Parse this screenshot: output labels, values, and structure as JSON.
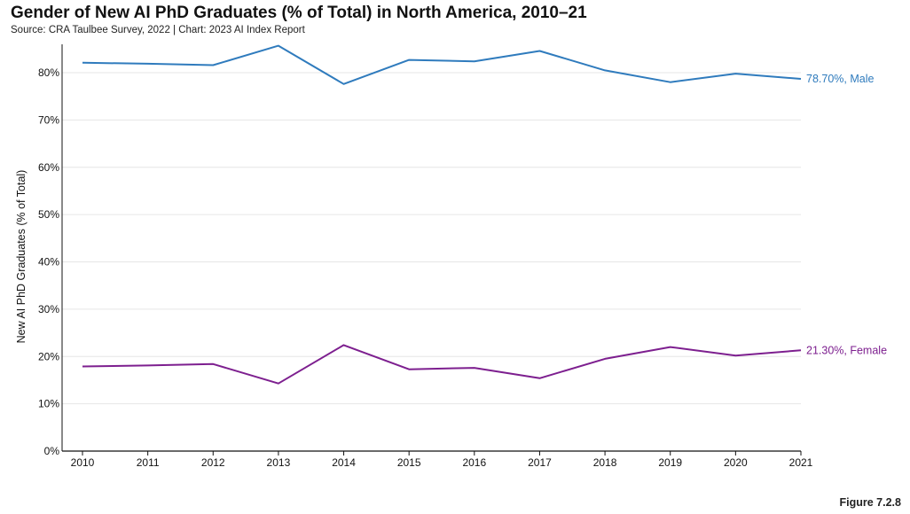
{
  "title": "Gender of New AI PhD Graduates (% of Total) in North America, 2010–21",
  "source": "Source: CRA Taulbee Survey, 2022 | Chart: 2023 AI Index Report",
  "figure_label": "Figure 7.2.8",
  "chart_data": {
    "type": "line",
    "ylabel": "New AI PhD Graduates (% of Total)",
    "xlabel": "",
    "ylim": [
      0,
      86
    ],
    "yticks": [
      0,
      10,
      20,
      30,
      40,
      50,
      60,
      70,
      80
    ],
    "ytick_labels": [
      "0%",
      "10%",
      "20%",
      "30%",
      "40%",
      "50%",
      "60%",
      "70%",
      "80%"
    ],
    "x": [
      "2010",
      "2011",
      "2012",
      "2013",
      "2014",
      "2015",
      "2016",
      "2017",
      "2018",
      "2019",
      "2020",
      "2021"
    ],
    "grid": true,
    "series": [
      {
        "name": "Male",
        "color": "#2f7bbd",
        "end_label": "78.70%, Male",
        "values": [
          82.1,
          81.9,
          81.6,
          85.7,
          77.6,
          82.7,
          82.4,
          84.6,
          80.5,
          78.0,
          79.8,
          78.7
        ]
      },
      {
        "name": "Female",
        "color": "#7d1f8f",
        "end_label": "21.30%, Female",
        "values": [
          17.9,
          18.1,
          18.4,
          14.3,
          22.4,
          17.3,
          17.6,
          15.4,
          19.5,
          22.0,
          20.2,
          21.3
        ]
      }
    ]
  }
}
